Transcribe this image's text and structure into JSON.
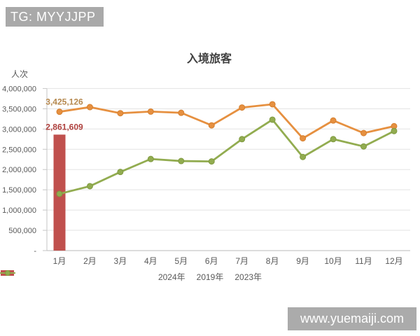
{
  "watermarks": {
    "top_left": "TG: MYYJJPP",
    "bottom_right": "www.yuemaiji.com"
  },
  "chart_data": {
    "type": "combo-bar-line",
    "title": "入境旅客",
    "grid": true,
    "legend_position": "bottom",
    "y_axis": {
      "unit_label": "人次",
      "min": 0,
      "max": 4000000,
      "tick_step": 500000,
      "tick_labels": [
        "-",
        "500,000",
        "1,000,000",
        "1,500,000",
        "2,000,000",
        "2,500,000",
        "3,000,000",
        "3,500,000",
        "4,000,000"
      ]
    },
    "categories": [
      "1月",
      "2月",
      "3月",
      "4月",
      "5月",
      "6月",
      "7月",
      "8月",
      "9月",
      "10月",
      "11月",
      "12月"
    ],
    "series": [
      {
        "name": "2024年",
        "type": "bar",
        "color": "#c0504d",
        "values": [
          2861609,
          null,
          null,
          null,
          null,
          null,
          null,
          null,
          null,
          null,
          null,
          null
        ]
      },
      {
        "name": "2019年",
        "type": "line",
        "color": "#e69040",
        "marker_stroke": "#d57f2f",
        "values": [
          3425126,
          3540000,
          3390000,
          3430000,
          3400000,
          3090000,
          3530000,
          3610000,
          2770000,
          3210000,
          2900000,
          3070000
        ]
      },
      {
        "name": "2023年",
        "type": "line",
        "color": "#92ac50",
        "marker_stroke": "#7f9a40",
        "values": [
          1400000,
          1590000,
          1940000,
          2260000,
          2210000,
          2200000,
          2750000,
          3230000,
          2310000,
          2750000,
          2570000,
          2950000
        ]
      }
    ],
    "data_labels": [
      {
        "series": "2019年",
        "category": "1月",
        "text": "3,425,126",
        "color": "#b5884e"
      },
      {
        "series": "2024年",
        "category": "1月",
        "text": "2,861,609",
        "color": "#ae403d"
      }
    ]
  },
  "colors": {
    "gridline": "#e3e3e3",
    "axis_line": "#c6c6c6",
    "tick_text": "#595959",
    "title_text": "#3f3f3f",
    "watermark_bg": "#a9a9a9",
    "watermark_text": "#ffffff"
  }
}
